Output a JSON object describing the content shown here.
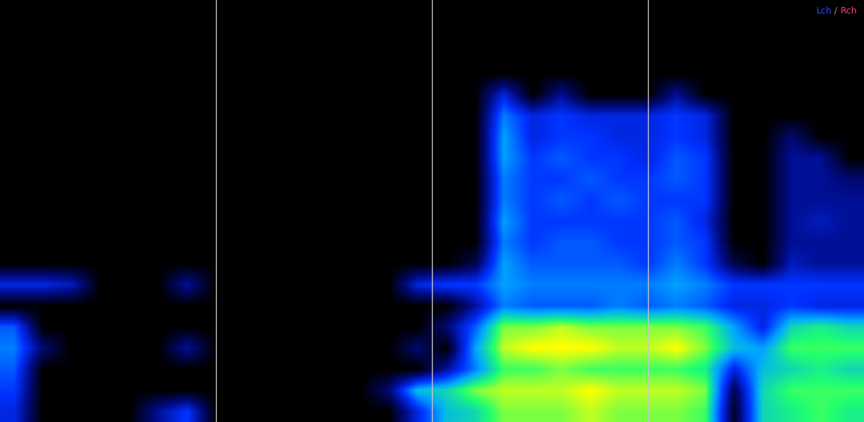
{
  "chart_data": {
    "type": "heatmap",
    "tick_labels": false,
    "grid": true,
    "annotations": [
      {
        "text": "Lch",
        "color": "#2a4cff"
      },
      {
        "text": "/",
        "color": "#9a8fb8"
      },
      {
        "text": "Rch",
        "color": "#ff3a8c"
      }
    ],
    "cells": [
      [
        0,
        0,
        0,
        0,
        0,
        0,
        0,
        0,
        0,
        0,
        0,
        0,
        0,
        0,
        0,
        0,
        0,
        0,
        0,
        0,
        0,
        0,
        0,
        0,
        0,
        0,
        0,
        0,
        0,
        0
      ],
      [
        0,
        0,
        0,
        0,
        0,
        0,
        0,
        0,
        0,
        0,
        0,
        0,
        0,
        0,
        0,
        0,
        0,
        0,
        0,
        0,
        0,
        0,
        0,
        0,
        0,
        0,
        0,
        0,
        0,
        0
      ],
      [
        0,
        0,
        0,
        0,
        0,
        0,
        0,
        0,
        0,
        0,
        0,
        0,
        0,
        0,
        0,
        0,
        0,
        0,
        0,
        0,
        0,
        0,
        0,
        0,
        0,
        0,
        0,
        0,
        0,
        0
      ],
      [
        0,
        0,
        0,
        0,
        0,
        0,
        0,
        0,
        0,
        0,
        0,
        0,
        0,
        0,
        0,
        0,
        0,
        0,
        0,
        0,
        0,
        0,
        0,
        0,
        0,
        0,
        0,
        0,
        0,
        0
      ],
      [
        0,
        0,
        0,
        0,
        0,
        0,
        0,
        0,
        0,
        0,
        0,
        0,
        0,
        0,
        0,
        0,
        0,
        0.3,
        0,
        0.2,
        0,
        0,
        0,
        0.2,
        0,
        0,
        0,
        0,
        0,
        0
      ],
      [
        0,
        0,
        0,
        0,
        0,
        0,
        0,
        0,
        0,
        0,
        0,
        0,
        0,
        0,
        0,
        0,
        0,
        0.45,
        0.3,
        0.35,
        0.3,
        0.3,
        0.3,
        0.35,
        0.3,
        0,
        0,
        0,
        0,
        0
      ],
      [
        0,
        0,
        0,
        0,
        0,
        0,
        0,
        0,
        0,
        0,
        0,
        0,
        0,
        0,
        0,
        0,
        0,
        0.5,
        0.3,
        0.35,
        0.35,
        0.3,
        0.3,
        0.35,
        0.3,
        0,
        0,
        0.15,
        0,
        0
      ],
      [
        0,
        0,
        0,
        0,
        0,
        0,
        0,
        0,
        0,
        0,
        0,
        0,
        0,
        0,
        0,
        0,
        0,
        0.5,
        0.35,
        0.4,
        0.35,
        0.35,
        0.3,
        0.4,
        0.35,
        0,
        0,
        0.2,
        0.2,
        0
      ],
      [
        0,
        0,
        0,
        0,
        0,
        0,
        0,
        0,
        0,
        0,
        0,
        0,
        0,
        0,
        0,
        0,
        0,
        0.45,
        0.35,
        0.35,
        0.4,
        0.35,
        0.35,
        0.4,
        0.35,
        0,
        0,
        0.2,
        0.2,
        0.15
      ],
      [
        0,
        0,
        0,
        0,
        0,
        0,
        0,
        0,
        0,
        0,
        0,
        0,
        0,
        0,
        0,
        0,
        0,
        0.45,
        0.35,
        0.4,
        0.35,
        0.4,
        0.35,
        0.35,
        0.35,
        0,
        0,
        0.2,
        0.2,
        0.2
      ],
      [
        0,
        0,
        0,
        0,
        0,
        0,
        0,
        0,
        0,
        0,
        0,
        0,
        0,
        0,
        0,
        0,
        0,
        0.5,
        0.35,
        0.35,
        0.35,
        0.35,
        0.35,
        0.4,
        0.3,
        0,
        0,
        0.2,
        0.25,
        0.2
      ],
      [
        0,
        0,
        0,
        0,
        0,
        0,
        0,
        0,
        0,
        0,
        0,
        0,
        0,
        0,
        0,
        0,
        0,
        0.45,
        0.35,
        0.4,
        0.4,
        0.35,
        0.35,
        0.4,
        0.35,
        0,
        0,
        0.2,
        0.2,
        0.2
      ],
      [
        0,
        0,
        0,
        0,
        0,
        0,
        0,
        0,
        0,
        0,
        0,
        0,
        0,
        0,
        0,
        0,
        0.1,
        0.5,
        0.4,
        0.4,
        0.4,
        0.4,
        0.35,
        0.45,
        0.35,
        0.1,
        0,
        0.25,
        0.2,
        0.2
      ],
      [
        0.3,
        0.3,
        0.25,
        0,
        0,
        0,
        0.2,
        0,
        0,
        0,
        0,
        0,
        0,
        0,
        0.3,
        0.35,
        0.35,
        0.5,
        0.45,
        0.45,
        0.45,
        0.45,
        0.45,
        0.5,
        0.45,
        0.35,
        0.35,
        0.35,
        0.35,
        0.35
      ],
      [
        0,
        0,
        0,
        0,
        0,
        0,
        0,
        0,
        0,
        0,
        0,
        0,
        0,
        0,
        0,
        0,
        0.2,
        0.45,
        0.4,
        0.4,
        0.4,
        0.45,
        0.4,
        0.45,
        0.4,
        0.3,
        0.3,
        0.35,
        0.3,
        0.3
      ],
      [
        0.4,
        0,
        0,
        0,
        0,
        0,
        0,
        0,
        0,
        0,
        0,
        0,
        0,
        0,
        0,
        0.15,
        0.4,
        0.75,
        0.75,
        0.8,
        0.75,
        0.75,
        0.75,
        0.75,
        0.7,
        0.5,
        0.3,
        0.6,
        0.65,
        0.6
      ],
      [
        0.45,
        0.15,
        0,
        0,
        0,
        0,
        0.2,
        0,
        0,
        0,
        0,
        0,
        0,
        0,
        0.15,
        0,
        0.5,
        0.8,
        0.85,
        0.85,
        0.85,
        0.8,
        0.8,
        0.85,
        0.75,
        0.55,
        0.5,
        0.7,
        0.7,
        0.7
      ],
      [
        0.4,
        0,
        0,
        0,
        0,
        0,
        0,
        0,
        0,
        0,
        0,
        0,
        0,
        0,
        0,
        0.2,
        0.45,
        0.7,
        0.7,
        0.75,
        0.7,
        0.7,
        0.7,
        0.7,
        0.65,
        0.3,
        0.55,
        0.6,
        0.65,
        0.6
      ],
      [
        0.35,
        0,
        0,
        0,
        0,
        0,
        0,
        0,
        0,
        0,
        0,
        0,
        0,
        0.15,
        0.55,
        0.6,
        0.75,
        0.8,
        0.8,
        0.8,
        0.85,
        0.8,
        0.8,
        0.8,
        0.75,
        0.1,
        0.6,
        0.7,
        0.7,
        0.7
      ],
      [
        0.3,
        0,
        0,
        0,
        0,
        0.2,
        0.35,
        0,
        0,
        0,
        0,
        0,
        0,
        0,
        0.3,
        0.55,
        0.6,
        0.75,
        0.75,
        0.75,
        0.8,
        0.75,
        0.75,
        0.75,
        0.7,
        0.05,
        0.6,
        0.65,
        0.7,
        0.65
      ]
    ]
  }
}
